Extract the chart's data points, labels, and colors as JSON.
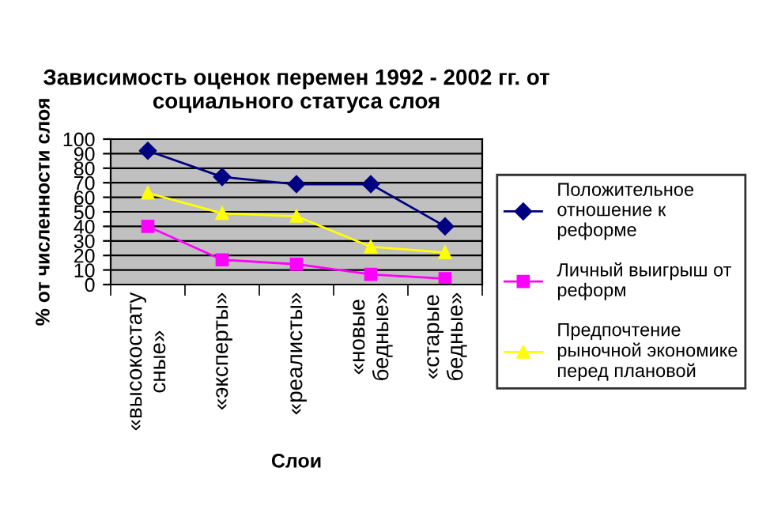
{
  "chart_data": {
    "type": "line",
    "title": "Зависимость оценок перемен 1992 - 2002 гг. от\nсоциального статуса слоя",
    "xlabel": "Слои",
    "ylabel": "% от численности слоя",
    "categories": [
      "«высокостату\nсные»",
      "«эксперты»",
      "«реалисты»",
      "«новые\nбедные»",
      "«старые\nбедные»"
    ],
    "series": [
      {
        "name": "Положительное\nотношение к\nреформе",
        "color": "#000080",
        "marker": "diamond",
        "values": [
          92,
          74,
          69,
          69,
          40
        ]
      },
      {
        "name": "Личный выигрыш от\nреформ",
        "color": "#ff00ff",
        "marker": "square",
        "values": [
          40,
          17,
          14,
          7,
          4
        ]
      },
      {
        "name": "Предпочтение\nрыночной экономике\nперед плановой",
        "color": "#ffff00",
        "marker": "triangle",
        "values": [
          63,
          49,
          47,
          26,
          22
        ]
      }
    ],
    "ylim": [
      0,
      100
    ],
    "yticks": [
      0,
      10,
      20,
      30,
      40,
      50,
      60,
      70,
      80,
      90,
      100
    ],
    "grid": "y",
    "legend": "right",
    "line_style": "solid"
  }
}
